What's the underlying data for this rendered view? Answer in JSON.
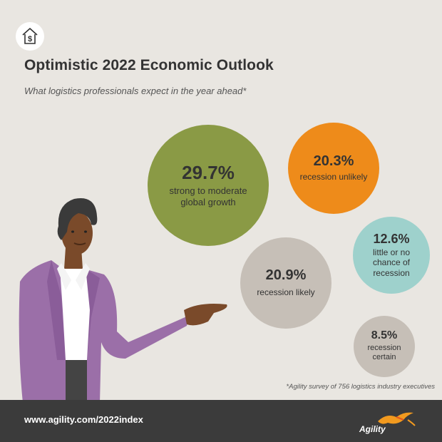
{
  "icon": "house-dollar-icon",
  "title": "Optimistic 2022 Economic Outlook",
  "subtitle": "What logistics professionals expect in the year ahead*",
  "bubbles": [
    {
      "value": "29.7%",
      "label": "strong to moderate global growth",
      "color": "#8a9a45"
    },
    {
      "value": "20.3%",
      "label": "recession unlikely",
      "color": "#ee8b1a"
    },
    {
      "value": "12.6%",
      "label": "little or no chance of recession",
      "color": "#9ed1cc"
    },
    {
      "value": "20.9%",
      "label": "recession likely",
      "color": "#c6bfb7"
    },
    {
      "value": "8.5%",
      "label": "recession certain",
      "color": "#c6bfb7"
    }
  ],
  "footnote": "*Agility survey of 756 logistics industry executives",
  "footer": {
    "url": "www.agility.com/2022index",
    "logo_text": "Agility",
    "background": "#3b3b3b"
  }
}
